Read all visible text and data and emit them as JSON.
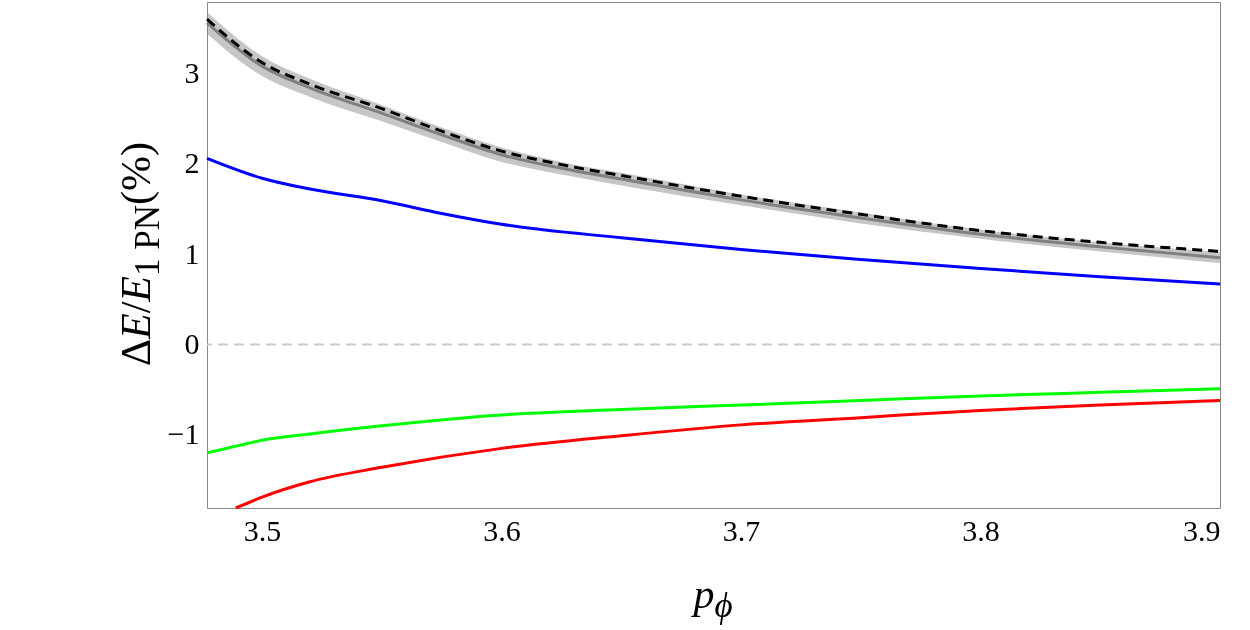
{
  "chart_data": {
    "type": "line",
    "xlabel": "p$_{ϕ}$",
    "ylabel": "ΔE/E$_{1 PN}$(%)",
    "xlim": [
      3.477,
      3.9
    ],
    "ylim": [
      -1.81,
      3.79
    ],
    "xticks": [
      3.5,
      3.6,
      3.7,
      3.8,
      3.9
    ],
    "yticks": [
      -1,
      0,
      1,
      2,
      3
    ],
    "marker": "none",
    "series": [
      {
        "color": "#808080",
        "x": [
          3.477,
          3.5,
          3.52,
          3.55,
          3.575,
          3.6,
          3.625,
          3.65,
          3.7,
          3.75,
          3.8,
          3.85,
          3.9
        ],
        "values": [
          3.56,
          3.08,
          2.84,
          2.56,
          2.32,
          2.1,
          1.95,
          1.83,
          1.6,
          1.4,
          1.22,
          1.08,
          0.96
        ],
        "lower": [
          3.44,
          2.97,
          2.74,
          2.47,
          2.24,
          2.02,
          1.88,
          1.76,
          1.54,
          1.34,
          1.17,
          1.03,
          0.9
        ],
        "upper": [
          3.68,
          3.19,
          2.94,
          2.65,
          2.4,
          2.18,
          2.02,
          1.9,
          1.66,
          1.46,
          1.27,
          1.13,
          1.02
        ]
      },
      {
        "color": "#000000",
        "line_style": "dashed",
        "x": [
          3.477,
          3.5,
          3.52,
          3.55,
          3.575,
          3.6,
          3.625,
          3.65,
          3.7,
          3.75,
          3.8,
          3.85,
          3.9
        ],
        "values": [
          3.6,
          3.12,
          2.88,
          2.61,
          2.36,
          2.14,
          1.99,
          1.87,
          1.64,
          1.44,
          1.26,
          1.13,
          1.03
        ]
      },
      {
        "color": "#0000ff",
        "x": [
          3.477,
          3.5,
          3.52,
          3.55,
          3.575,
          3.6,
          3.65,
          3.7,
          3.75,
          3.8,
          3.85,
          3.9
        ],
        "values": [
          2.06,
          1.84,
          1.72,
          1.59,
          1.45,
          1.33,
          1.18,
          1.05,
          0.94,
          0.84,
          0.75,
          0.67
        ]
      },
      {
        "color": "#00ff00",
        "x": [
          3.477,
          3.49,
          3.5,
          3.52,
          3.55,
          3.6,
          3.65,
          3.7,
          3.75,
          3.8,
          3.85,
          3.9
        ],
        "values": [
          -1.2,
          -1.12,
          -1.06,
          -0.99,
          -0.9,
          -0.78,
          -0.72,
          -0.67,
          -0.62,
          -0.57,
          -0.53,
          -0.49
        ]
      },
      {
        "color": "#ff0000",
        "x": [
          3.489,
          3.5,
          3.52,
          3.55,
          3.6,
          3.65,
          3.7,
          3.75,
          3.8,
          3.85,
          3.9
        ],
        "values": [
          -1.81,
          -1.69,
          -1.52,
          -1.36,
          -1.15,
          -1.01,
          -0.89,
          -0.81,
          -0.73,
          -0.67,
          -0.62
        ]
      }
    ],
    "ref_lines": [
      {
        "axis": "y",
        "value": 0,
        "color": "#cccccc",
        "line_style": "dashed"
      }
    ]
  }
}
